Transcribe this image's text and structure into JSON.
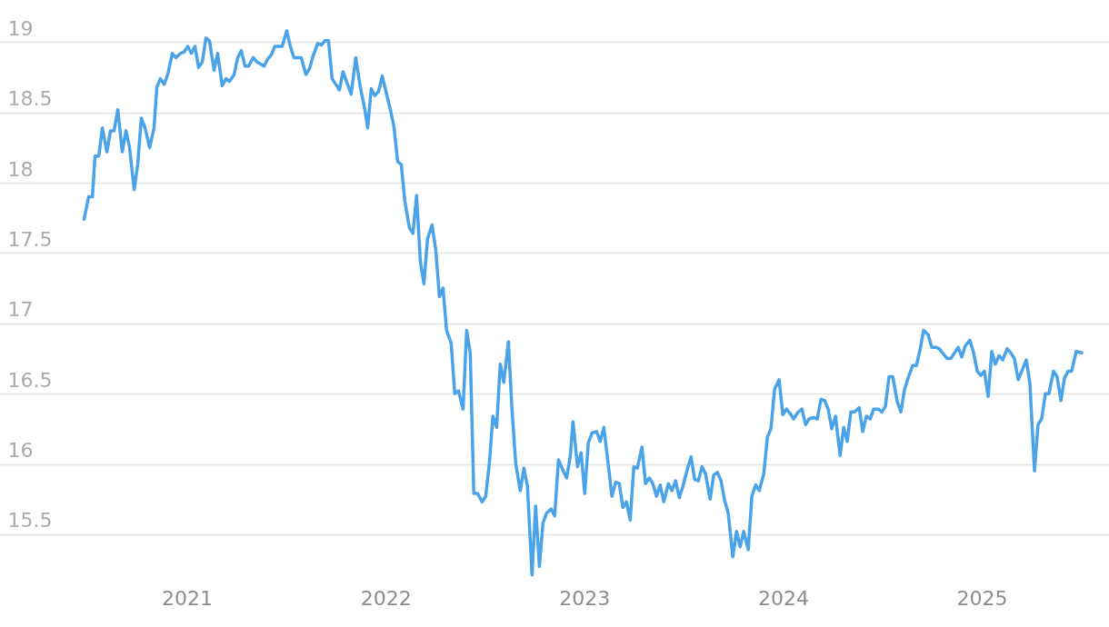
{
  "chart_data": {
    "type": "line",
    "xlim": [
      2020.06,
      2025.64
    ],
    "xticks": [
      2021,
      2022,
      2023,
      2024,
      2025
    ],
    "ylim": [
      14.84,
      19.3
    ],
    "yticks": [
      15.5,
      16,
      16.5,
      17,
      17.5,
      18,
      18.5,
      19
    ],
    "grid": "y",
    "line_style": "solid",
    "series": [
      {
        "color": "#4aa3e8",
        "x": [
          2020.483,
          2020.506,
          2020.525,
          2020.538,
          2020.557,
          2020.575,
          2020.598,
          2020.616,
          2020.634,
          2020.653,
          2020.675,
          2020.694,
          2020.712,
          2020.735,
          2020.753,
          2020.771,
          2020.79,
          2020.813,
          2020.835,
          2020.849,
          2020.867,
          2020.886,
          2020.904,
          2020.927,
          2020.945,
          2020.968,
          2020.986,
          2021.005,
          2021.023,
          2021.041,
          2021.059,
          2021.078,
          2021.096,
          2021.114,
          2021.137,
          2021.155,
          2021.178,
          2021.197,
          2021.215,
          2021.238,
          2021.256,
          2021.274,
          2021.293,
          2021.311,
          2021.334,
          2021.352,
          2021.389,
          2021.407,
          2021.425,
          2021.443,
          2021.48,
          2021.503,
          2021.521,
          2021.539,
          2021.576,
          2021.599,
          2021.617,
          2021.635,
          2021.658,
          2021.677,
          2021.695,
          2021.713,
          2021.731,
          2021.768,
          2021.786,
          2021.827,
          2021.85,
          2021.873,
          2021.896,
          2021.91,
          2021.928,
          2021.946,
          2021.965,
          2021.983,
          2022.024,
          2022.042,
          2022.061,
          2022.079,
          2022.097,
          2022.12,
          2022.138,
          2022.156,
          2022.175,
          2022.193,
          2022.211,
          2022.234,
          2022.252,
          2022.271,
          2022.289,
          2022.307,
          2022.33,
          2022.348,
          2022.367,
          2022.39,
          2022.408,
          2022.426,
          2022.444,
          2022.463,
          2022.486,
          2022.504,
          2022.522,
          2022.54,
          2022.559,
          2022.577,
          2022.595,
          2022.618,
          2022.636,
          2022.655,
          2022.678,
          2022.696,
          2022.714,
          2022.737,
          2022.755,
          2022.774,
          2022.792,
          2022.81,
          2022.833,
          2022.851,
          2022.87,
          2022.888,
          2022.911,
          2022.929,
          2022.943,
          2022.966,
          2022.984,
          2023.002,
          2023.02,
          2023.039,
          2023.062,
          2023.08,
          2023.098,
          2023.116,
          2023.139,
          2023.158,
          2023.176,
          2023.194,
          2023.212,
          2023.231,
          2023.249,
          2023.267,
          2023.29,
          2023.308,
          2023.327,
          2023.345,
          2023.363,
          2023.382,
          2023.4,
          2023.423,
          2023.441,
          2023.459,
          2023.478,
          2023.496,
          2023.514,
          2023.537,
          2023.555,
          2023.574,
          2023.592,
          2023.61,
          2023.633,
          2023.651,
          2023.67,
          2023.688,
          2023.706,
          2023.724,
          2023.747,
          2023.766,
          2023.784,
          2023.802,
          2023.825,
          2023.843,
          2023.862,
          2023.88,
          2023.903,
          2023.921,
          2023.939,
          2023.957,
          2023.98,
          2023.999,
          2024.017,
          2024.035,
          2024.053,
          2024.076,
          2024.095,
          2024.113,
          2024.131,
          2024.154,
          2024.172,
          2024.191,
          2024.209,
          2024.227,
          2024.245,
          2024.264,
          2024.287,
          2024.305,
          2024.323,
          2024.341,
          2024.36,
          2024.383,
          2024.401,
          2024.419,
          2024.438,
          2024.456,
          2024.479,
          2024.497,
          2024.515,
          2024.533,
          2024.552,
          2024.575,
          2024.593,
          2024.611,
          2024.634,
          2024.652,
          2024.671,
          2024.689,
          2024.707,
          2024.73,
          2024.748,
          2024.767,
          2024.785,
          2024.808,
          2024.826,
          2024.844,
          2024.863,
          2024.881,
          2024.899,
          2024.917,
          2024.94,
          2024.959,
          2024.977,
          2024.995,
          2025.013,
          2025.032,
          2025.05,
          2025.068,
          2025.087,
          2025.105,
          2025.128,
          2025.146,
          2025.164,
          2025.183,
          2025.201,
          2025.224,
          2025.242,
          2025.265,
          2025.283,
          2025.301,
          2025.32,
          2025.338,
          2025.361,
          2025.379,
          2025.398,
          2025.416,
          2025.434,
          2025.452,
          2025.475,
          2025.503
        ],
        "values": [
          17.74,
          17.9,
          17.9,
          18.19,
          18.19,
          18.39,
          18.22,
          18.37,
          18.37,
          18.52,
          18.22,
          18.37,
          18.25,
          17.95,
          18.13,
          18.46,
          18.39,
          18.25,
          18.39,
          18.68,
          18.74,
          18.7,
          18.77,
          18.92,
          18.89,
          18.92,
          18.93,
          18.97,
          18.92,
          18.97,
          18.82,
          18.86,
          19.03,
          19.01,
          18.8,
          18.92,
          18.69,
          18.74,
          18.72,
          18.77,
          18.89,
          18.94,
          18.83,
          18.83,
          18.89,
          18.86,
          18.83,
          18.88,
          18.91,
          18.97,
          18.97,
          19.08,
          18.97,
          18.89,
          18.89,
          18.77,
          18.81,
          18.9,
          18.99,
          18.98,
          19.01,
          19.01,
          18.74,
          18.66,
          18.79,
          18.63,
          18.89,
          18.68,
          18.52,
          18.39,
          18.67,
          18.62,
          18.65,
          18.76,
          18.52,
          18.4,
          18.15,
          18.13,
          17.87,
          17.68,
          17.64,
          17.91,
          17.44,
          17.28,
          17.6,
          17.7,
          17.53,
          17.19,
          17.25,
          16.95,
          16.86,
          16.5,
          16.52,
          16.39,
          16.95,
          16.79,
          15.79,
          15.79,
          15.73,
          15.77,
          16.0,
          16.34,
          16.26,
          16.71,
          16.58,
          16.87,
          16.39,
          16.0,
          15.81,
          15.97,
          15.84,
          15.21,
          15.7,
          15.27,
          15.58,
          15.65,
          15.68,
          15.63,
          16.03,
          15.97,
          15.9,
          16.05,
          16.3,
          15.98,
          16.08,
          15.79,
          16.15,
          16.22,
          16.23,
          16.16,
          16.26,
          16.05,
          15.77,
          15.87,
          15.86,
          15.69,
          15.73,
          15.6,
          15.98,
          15.97,
          16.12,
          15.86,
          15.9,
          15.86,
          15.77,
          15.85,
          15.73,
          15.86,
          15.81,
          15.88,
          15.76,
          15.84,
          15.94,
          16.05,
          15.89,
          15.88,
          15.98,
          15.93,
          15.75,
          15.92,
          15.94,
          15.88,
          15.74,
          15.65,
          15.34,
          15.52,
          15.41,
          15.52,
          15.39,
          15.77,
          15.85,
          15.81,
          15.93,
          16.19,
          16.25,
          16.53,
          16.6,
          16.35,
          16.39,
          16.36,
          16.32,
          16.37,
          16.39,
          16.28,
          16.32,
          16.33,
          16.32,
          16.46,
          16.45,
          16.39,
          16.25,
          16.34,
          16.06,
          16.26,
          16.16,
          16.37,
          16.37,
          16.4,
          16.23,
          16.34,
          16.32,
          16.39,
          16.39,
          16.37,
          16.41,
          16.62,
          16.62,
          16.44,
          16.37,
          16.53,
          16.63,
          16.7,
          16.7,
          16.81,
          16.95,
          16.92,
          16.83,
          16.83,
          16.82,
          16.78,
          16.75,
          16.75,
          16.79,
          16.83,
          16.76,
          16.84,
          16.88,
          16.79,
          16.66,
          16.63,
          16.66,
          16.48,
          16.8,
          16.71,
          16.77,
          16.74,
          16.82,
          16.79,
          16.75,
          16.6,
          16.66,
          16.74,
          16.57,
          15.95,
          16.28,
          16.32,
          16.5,
          16.5,
          16.66,
          16.62,
          16.45,
          16.61,
          16.66,
          16.66,
          16.8,
          16.79
        ]
      }
    ]
  }
}
